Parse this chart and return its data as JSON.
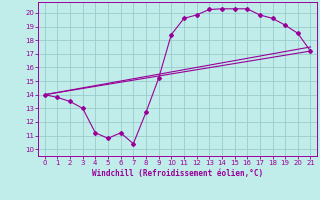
{
  "xlabel": "Windchill (Refroidissement éolien,°C)",
  "bg_color": "#c0ecea",
  "line_color": "#990099",
  "grid_color": "#99cccc",
  "xlim": [
    -0.5,
    21.5
  ],
  "ylim": [
    9.5,
    20.8
  ],
  "xticks": [
    0,
    1,
    2,
    3,
    4,
    5,
    6,
    7,
    8,
    9,
    10,
    11,
    12,
    13,
    14,
    15,
    16,
    17,
    18,
    19,
    20,
    21
  ],
  "yticks": [
    10,
    11,
    12,
    13,
    14,
    15,
    16,
    17,
    18,
    19,
    20
  ],
  "curve1_x": [
    0,
    1,
    2,
    3,
    4,
    5,
    6,
    7,
    8,
    9,
    10,
    11,
    12,
    13,
    14,
    15,
    16,
    17,
    18,
    19,
    20,
    21
  ],
  "curve1_y": [
    14.0,
    13.8,
    13.5,
    13.0,
    11.2,
    10.8,
    11.2,
    10.4,
    12.7,
    15.2,
    18.4,
    19.6,
    19.85,
    20.25,
    20.3,
    20.3,
    20.3,
    19.85,
    19.6,
    19.1,
    18.5,
    17.2
  ],
  "curve2_x": [
    0,
    21
  ],
  "curve2_y": [
    14.0,
    17.2
  ],
  "curve3_x": [
    0,
    21
  ],
  "curve3_y": [
    14.0,
    17.5
  ]
}
